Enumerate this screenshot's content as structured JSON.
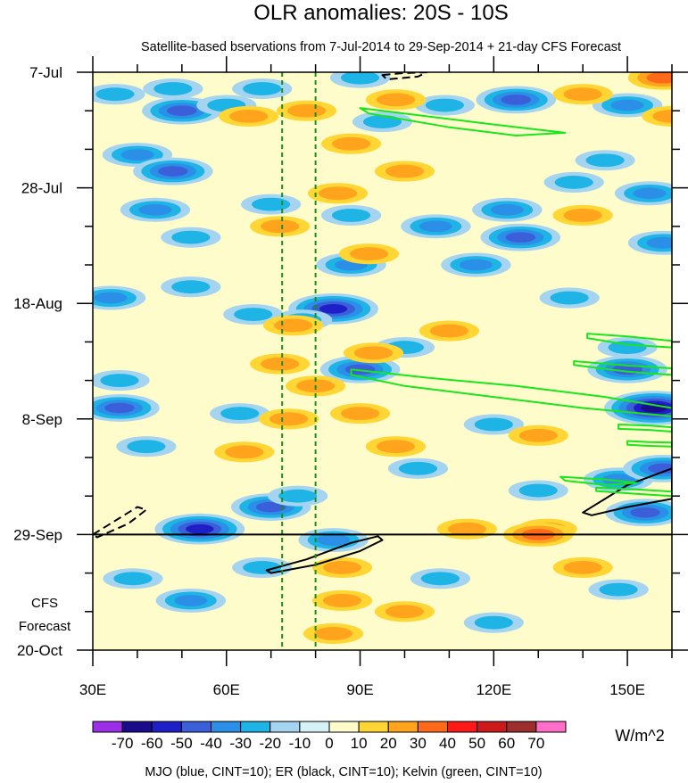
{
  "chart_data": {
    "type": "heatmap",
    "title": "OLR anomalies: 20S - 10S",
    "subtitle": "Satellite-based bservations from 7-Jul-2014 to 29-Sep-2014 + 21-day CFS Forecast",
    "footnote": "MJO (blue, CINT=10); ER (black, CINT=10); Kelvin (green, CINT=10)",
    "units": "W/m^2",
    "forecast_label_1": "CFS",
    "forecast_label_2": "Forecast",
    "x_axis": {
      "min": 30,
      "max": 160,
      "ticks": [
        30,
        60,
        90,
        120,
        150
      ],
      "tick_labels": [
        "30E",
        "60E",
        "90E",
        "120E",
        "150E"
      ]
    },
    "y_axis": {
      "start": "7-Jul-2014",
      "end": "20-Oct-2014",
      "days_total": 105,
      "ticks_days": [
        0,
        21,
        42,
        63,
        84,
        105
      ],
      "tick_labels": [
        "7-Jul",
        "28-Jul",
        "18-Aug",
        "8-Sep",
        "29-Sep",
        "20-Oct"
      ]
    },
    "forecast_start_day": 84,
    "reference_longitudes": [
      72.5,
      80
    ],
    "colorbar": {
      "labels": [
        "-70",
        "-60",
        "-50",
        "-40",
        "-30",
        "-20",
        "-10",
        "0",
        "10",
        "20",
        "30",
        "40",
        "50",
        "60",
        "70"
      ],
      "colors": [
        "#9b30e8",
        "#1a0a8c",
        "#1f1fc8",
        "#3a5fd9",
        "#2b8fe8",
        "#1eb4e6",
        "#a4d4f0",
        "#d6f2f7",
        "#fffccc",
        "#ffd633",
        "#ffa41c",
        "#ff6a1a",
        "#ff1a1a",
        "#cc1a1a",
        "#9c2e2e",
        "#ff6ec7"
      ]
    },
    "anomaly_blobs": [
      {
        "lon": 35,
        "day": 4,
        "value": -20
      },
      {
        "lon": 48,
        "day": 3,
        "value": -20
      },
      {
        "lon": 50,
        "day": 7,
        "value": -40
      },
      {
        "lon": 60,
        "day": 6,
        "value": -20
      },
      {
        "lon": 68,
        "day": 3,
        "value": -20
      },
      {
        "lon": 95,
        "day": 9,
        "value": -20
      },
      {
        "lon": 109,
        "day": 6,
        "value": -20
      },
      {
        "lon": 125,
        "day": 5,
        "value": -40
      },
      {
        "lon": 150,
        "day": 6,
        "value": -30
      },
      {
        "lon": 90,
        "day": 1,
        "value": -20
      },
      {
        "lon": 40,
        "day": 15,
        "value": -30
      },
      {
        "lon": 48,
        "day": 18,
        "value": -40
      },
      {
        "lon": 44,
        "day": 25,
        "value": -30
      },
      {
        "lon": 52,
        "day": 30,
        "value": -20
      },
      {
        "lon": 70,
        "day": 24,
        "value": -20
      },
      {
        "lon": 88,
        "day": 26,
        "value": -20
      },
      {
        "lon": 107,
        "day": 28,
        "value": -30
      },
      {
        "lon": 123,
        "day": 25,
        "value": -30
      },
      {
        "lon": 138,
        "day": 20,
        "value": -20
      },
      {
        "lon": 145,
        "day": 16,
        "value": -20
      },
      {
        "lon": 155,
        "day": 22,
        "value": -30
      },
      {
        "lon": 126,
        "day": 30,
        "value": -40
      },
      {
        "lon": 158,
        "day": 31,
        "value": -30
      },
      {
        "lon": 116,
        "day": 35,
        "value": -30
      },
      {
        "lon": 34,
        "day": 41,
        "value": -30
      },
      {
        "lon": 52,
        "day": 39,
        "value": -20
      },
      {
        "lon": 88,
        "day": 35,
        "value": -30
      },
      {
        "lon": 84,
        "day": 43,
        "value": -50
      },
      {
        "lon": 66,
        "day": 44,
        "value": -20
      },
      {
        "lon": 77,
        "day": 45,
        "value": -20
      },
      {
        "lon": 137,
        "day": 41,
        "value": -20
      },
      {
        "lon": 100,
        "day": 50,
        "value": -20
      },
      {
        "lon": 150,
        "day": 50,
        "value": -20
      },
      {
        "lon": 36,
        "day": 61,
        "value": -40
      },
      {
        "lon": 36,
        "day": 56,
        "value": -20
      },
      {
        "lon": 90,
        "day": 54,
        "value": -40
      },
      {
        "lon": 150,
        "day": 54,
        "value": -40
      },
      {
        "lon": 156,
        "day": 61,
        "value": -60
      },
      {
        "lon": 63,
        "day": 62,
        "value": -20
      },
      {
        "lon": 120,
        "day": 64,
        "value": -20
      },
      {
        "lon": 42,
        "day": 68,
        "value": -20
      },
      {
        "lon": 70,
        "day": 79,
        "value": -40
      },
      {
        "lon": 76,
        "day": 77,
        "value": -20
      },
      {
        "lon": 54,
        "day": 83,
        "value": -50
      },
      {
        "lon": 84,
        "day": 85,
        "value": -30
      },
      {
        "lon": 148,
        "day": 74,
        "value": -30
      },
      {
        "lon": 158,
        "day": 72,
        "value": -40
      },
      {
        "lon": 154,
        "day": 80,
        "value": -40
      },
      {
        "lon": 130,
        "day": 76,
        "value": -20
      },
      {
        "lon": 103,
        "day": 72,
        "value": -20
      },
      {
        "lon": 39,
        "day": 92,
        "value": -20
      },
      {
        "lon": 52,
        "day": 96,
        "value": -30
      },
      {
        "lon": 68,
        "day": 90,
        "value": -20
      },
      {
        "lon": 108,
        "day": 92,
        "value": -20
      },
      {
        "lon": 120,
        "day": 100,
        "value": -20
      },
      {
        "lon": 148,
        "day": 94,
        "value": -20
      },
      {
        "lon": 65,
        "day": 8,
        "value": 20
      },
      {
        "lon": 78,
        "day": 7,
        "value": 20
      },
      {
        "lon": 88,
        "day": 13,
        "value": 20
      },
      {
        "lon": 98,
        "day": 5,
        "value": 20
      },
      {
        "lon": 140,
        "day": 4,
        "value": 20
      },
      {
        "lon": 158,
        "day": 1,
        "value": 30
      },
      {
        "lon": 160,
        "day": 8,
        "value": 20
      },
      {
        "lon": 85,
        "day": 22,
        "value": 20
      },
      {
        "lon": 72,
        "day": 28,
        "value": 20
      },
      {
        "lon": 92,
        "day": 33,
        "value": 20
      },
      {
        "lon": 140,
        "day": 26,
        "value": 20
      },
      {
        "lon": 100,
        "day": 18,
        "value": 20
      },
      {
        "lon": 75,
        "day": 46,
        "value": 20
      },
      {
        "lon": 72,
        "day": 53,
        "value": 20
      },
      {
        "lon": 93,
        "day": 51,
        "value": 20
      },
      {
        "lon": 110,
        "day": 47,
        "value": 20
      },
      {
        "lon": 80,
        "day": 57,
        "value": 20
      },
      {
        "lon": 64,
        "day": 69,
        "value": 20
      },
      {
        "lon": 74,
        "day": 63,
        "value": 20
      },
      {
        "lon": 98,
        "day": 68,
        "value": 20
      },
      {
        "lon": 90,
        "day": 62,
        "value": 20
      },
      {
        "lon": 130,
        "day": 66,
        "value": 20
      },
      {
        "lon": 132,
        "day": 83,
        "value": 20
      },
      {
        "lon": 130,
        "day": 84,
        "value": 30
      },
      {
        "lon": 114,
        "day": 83,
        "value": 20
      },
      {
        "lon": 86,
        "day": 90,
        "value": 20
      },
      {
        "lon": 86,
        "day": 96,
        "value": 20
      },
      {
        "lon": 84,
        "day": 102,
        "value": 20
      },
      {
        "lon": 100,
        "day": 98,
        "value": 20
      },
      {
        "lon": 140,
        "day": 90,
        "value": 20
      }
    ],
    "mjo_contours": [],
    "er_contours": [
      {
        "ring": [
          [
            95,
            0.5
          ],
          [
            99,
            0.2
          ],
          [
            105,
            0
          ],
          [
            103,
            0.8
          ],
          [
            96,
            1.3
          ]
        ],
        "dashed": true
      },
      {
        "ring": [
          [
            30,
            84
          ],
          [
            36,
            81
          ],
          [
            40,
            79
          ],
          [
            42,
            79.5
          ],
          [
            38,
            82
          ],
          [
            31,
            84.5
          ]
        ],
        "dashed": true
      },
      {
        "ring": [
          [
            69,
            90.5
          ],
          [
            78,
            88.5
          ],
          [
            88,
            85.5
          ],
          [
            94,
            84.3
          ],
          [
            95,
            85
          ],
          [
            90,
            87
          ],
          [
            80,
            89.5
          ],
          [
            70,
            91
          ]
        ],
        "dashed": false
      },
      {
        "ring": [
          [
            140,
            80
          ],
          [
            150,
            75
          ],
          [
            160,
            72
          ],
          [
            160,
            77.5
          ],
          [
            150,
            79
          ],
          [
            142,
            80.5
          ]
        ],
        "dashed": false
      }
    ],
    "kelvin_contours": [
      {
        "ring": [
          [
            90,
            6.5
          ],
          [
            105,
            8
          ],
          [
            120,
            9.5
          ],
          [
            136,
            11
          ],
          [
            125,
            11.5
          ],
          [
            110,
            10
          ],
          [
            92,
            7.5
          ]
        ]
      },
      {
        "ring": [
          [
            88,
            54
          ],
          [
            105,
            55.5
          ],
          [
            125,
            57
          ],
          [
            145,
            59
          ],
          [
            160,
            61
          ],
          [
            160,
            62.5
          ],
          [
            140,
            61
          ],
          [
            120,
            59
          ],
          [
            100,
            57
          ],
          [
            88,
            55
          ]
        ]
      },
      {
        "ring": [
          [
            141,
            47.5
          ],
          [
            150,
            48
          ],
          [
            160,
            48.8
          ],
          [
            160,
            50
          ],
          [
            150,
            49.5
          ],
          [
            141,
            48.3
          ]
        ]
      },
      {
        "ring": [
          [
            138,
            52.5
          ],
          [
            150,
            53.3
          ],
          [
            160,
            53.8
          ],
          [
            160,
            55
          ],
          [
            150,
            54.4
          ],
          [
            138,
            53.2
          ]
        ]
      },
      {
        "ring": [
          [
            148,
            64
          ],
          [
            155,
            64.2
          ],
          [
            160,
            64.5
          ],
          [
            160,
            65.3
          ],
          [
            155,
            65
          ],
          [
            148,
            64.8
          ]
        ]
      },
      {
        "ring": [
          [
            150,
            67
          ],
          [
            155,
            67.2
          ],
          [
            160,
            67.3
          ],
          [
            160,
            68
          ],
          [
            155,
            67.9
          ],
          [
            150,
            67.7
          ]
        ]
      },
      {
        "ring": [
          [
            135,
            73.5
          ],
          [
            145,
            74
          ],
          [
            152,
            74.6
          ],
          [
            145,
            75
          ],
          [
            136,
            74.2
          ]
        ]
      },
      {
        "ring": [
          [
            143,
            75.5
          ],
          [
            152,
            75.8
          ],
          [
            160,
            76.2
          ],
          [
            160,
            77
          ],
          [
            152,
            76.6
          ],
          [
            143,
            76.1
          ]
        ]
      }
    ]
  }
}
